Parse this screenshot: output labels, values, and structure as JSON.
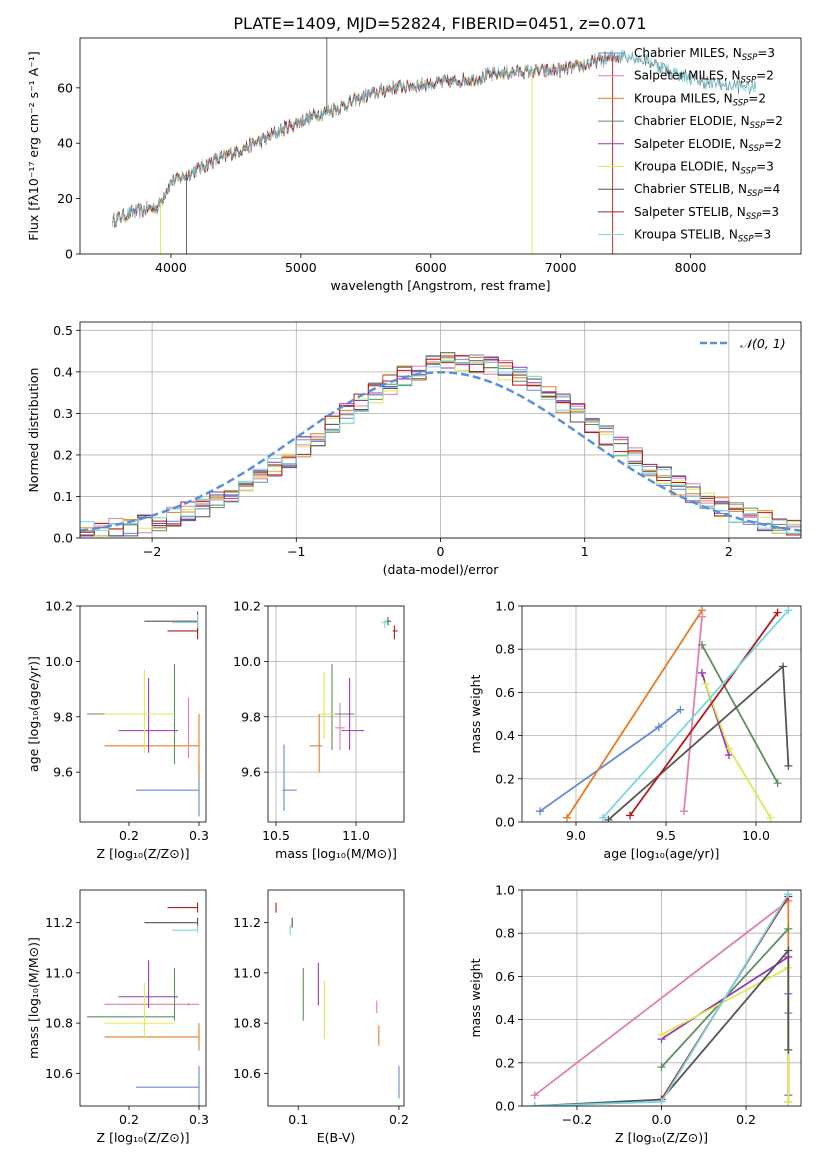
{
  "figure": {
    "title": "PLATE=1409, MJD=52824, FIBERID=0451, z=0.071"
  },
  "colors": {
    "Chabrier MILES": "#6688d8",
    "Salpeter MILES": "#e27fb0",
    "Kroupa MILES": "#e87c25",
    "Chabrier ELODIE": "#5e8f5e",
    "Salpeter ELODIE": "#9a36b8",
    "Kroupa ELODIE": "#dde853",
    "Chabrier STELIB": "#555555",
    "Salpeter STELIB": "#b31b1b",
    "Kroupa STELIB": "#79d6e3"
  },
  "chart_data": [
    {
      "id": "spectrum",
      "type": "line",
      "xlabel": "wavelength [Angstrom, rest frame]",
      "ylabel": "Flux [fλ10⁻¹⁷ erg cm⁻² s⁻¹ A⁻¹]",
      "xlim": [
        3300,
        8850
      ],
      "ylim": [
        0,
        78
      ],
      "xticks": [
        4000,
        5000,
        6000,
        7000,
        8000
      ],
      "yticks": [
        0,
        20,
        40,
        60
      ],
      "legend_position": "right",
      "legend": [
        {
          "label": "Chabrier MILES, N",
          "sub": "SSP",
          "tail": "=3"
        },
        {
          "label": "Salpeter MILES, N",
          "sub": "SSP",
          "tail": "=2"
        },
        {
          "label": "Kroupa MILES, N",
          "sub": "SSP",
          "tail": "=2"
        },
        {
          "label": "Chabrier ELODIE, N",
          "sub": "SSP",
          "tail": "=2"
        },
        {
          "label": "Salpeter ELODIE, N",
          "sub": "SSP",
          "tail": "=2"
        },
        {
          "label": "Kroupa ELODIE, N",
          "sub": "SSP",
          "tail": "=3"
        },
        {
          "label": "Chabrier STELIB, N",
          "sub": "SSP",
          "tail": "=4"
        },
        {
          "label": "Salpeter STELIB, N",
          "sub": "SSP",
          "tail": "=3"
        },
        {
          "label": "Kroupa STELIB, N",
          "sub": "SSP",
          "tail": "=3"
        }
      ],
      "continuum": {
        "x": [
          3550,
          3700,
          3900,
          4000,
          4100,
          4300,
          4500,
          4700,
          4900,
          5100,
          5300,
          5500,
          5700,
          5900,
          6100,
          6300,
          6500,
          6700,
          6900,
          7100,
          7300,
          7500,
          7700,
          7900,
          8100,
          8300,
          8500
        ],
        "y": [
          12,
          15,
          17,
          26,
          28,
          33,
          37,
          41,
          46,
          50,
          53,
          57,
          60,
          61,
          62,
          63,
          65,
          66,
          66,
          67,
          70,
          72,
          69,
          65,
          62,
          61,
          60
        ]
      },
      "spikes": [
        {
          "x": 3920,
          "y": 0,
          "series": "Kroupa ELODIE"
        },
        {
          "x": 4120,
          "y": 0,
          "series": "Chabrier STELIB"
        },
        {
          "x": 5200,
          "y": 78,
          "series": "Chabrier STELIB"
        },
        {
          "x": 6780,
          "y": 0,
          "series": "Kroupa ELODIE"
        },
        {
          "x": 7400,
          "y": 0,
          "series": "Salpeter STELIB"
        }
      ]
    },
    {
      "id": "residuals",
      "type": "step",
      "xlabel": "(data-model)/error",
      "ylabel": "Normed distribution",
      "xlim": [
        -2.5,
        2.5
      ],
      "ylim": [
        0,
        0.52
      ],
      "xticks": [
        -2,
        -1,
        0,
        1,
        2
      ],
      "yticks": [
        0.0,
        0.1,
        0.2,
        0.3,
        0.4,
        0.5
      ],
      "grid": true,
      "reference": {
        "name": "𝒩(0, 1)",
        "mean": 0,
        "sigma": 1,
        "style": "dashed",
        "color": "#5b8fd9"
      },
      "legend_position": "top-right"
    },
    {
      "id": "age-Z",
      "type": "errorbar",
      "xlabel": "Z [log₁₀(Z/Z⊙)]",
      "ylabel": "age  [log₁₀(age/yr)]",
      "xlim": [
        0.13,
        0.31
      ],
      "ylim": [
        9.42,
        10.2
      ],
      "xticks": [
        0.2,
        0.3
      ],
      "yticks": [
        9.6,
        9.8,
        10.0,
        10.2
      ],
      "points": [
        {
          "series": "Chabrier MILES",
          "x": 0.3,
          "y": 9.535,
          "xlo": 0.21,
          "xhi": 0.3,
          "ylo": 9.44,
          "yhi": 9.63
        },
        {
          "series": "Salpeter MILES",
          "x": 0.285,
          "y": 9.76,
          "xlo": 0.285,
          "xhi": 0.285,
          "ylo": 9.65,
          "yhi": 9.87
        },
        {
          "series": "Kroupa MILES",
          "x": 0.3,
          "y": 9.695,
          "xlo": 0.165,
          "xhi": 0.3,
          "ylo": 9.58,
          "yhi": 9.81
        },
        {
          "series": "Chabrier ELODIE",
          "x": 0.265,
          "y": 9.81,
          "xlo": 0.14,
          "xhi": 0.265,
          "ylo": 9.63,
          "yhi": 9.99
        },
        {
          "series": "Salpeter ELODIE",
          "x": 0.228,
          "y": 9.75,
          "xlo": 0.185,
          "xhi": 0.27,
          "ylo": 9.67,
          "yhi": 9.94
        },
        {
          "series": "Kroupa ELODIE",
          "x": 0.222,
          "y": 9.81,
          "xlo": 0.165,
          "xhi": 0.265,
          "ylo": 9.67,
          "yhi": 9.97
        },
        {
          "series": "Chabrier STELIB",
          "x": 0.298,
          "y": 10.145,
          "xlo": 0.222,
          "xhi": 0.298,
          "ylo": 10.1,
          "yhi": 10.18
        },
        {
          "series": "Salpeter STELIB",
          "x": 0.298,
          "y": 10.11,
          "xlo": 0.255,
          "xhi": 0.298,
          "ylo": 10.08,
          "yhi": 10.14
        },
        {
          "series": "Kroupa STELIB",
          "x": 0.298,
          "y": 10.14,
          "xlo": 0.262,
          "xhi": 0.298,
          "ylo": 10.12,
          "yhi": 10.17
        }
      ]
    },
    {
      "id": "age-mass",
      "type": "errorbar",
      "xlabel": "mass [log₁₀(M/M⊙)]",
      "ylabel": "",
      "xlim": [
        10.45,
        11.3
      ],
      "ylim": [
        9.42,
        10.2
      ],
      "xticks": [
        10.5,
        11.0
      ],
      "yticks": [
        9.6,
        9.8,
        10.0,
        10.2
      ],
      "grid": true,
      "points": [
        {
          "series": "Chabrier MILES",
          "x": 10.55,
          "y": 9.535,
          "xlo": 10.54,
          "xhi": 10.63,
          "ylo": 9.46,
          "yhi": 9.7
        },
        {
          "series": "Salpeter MILES",
          "x": 10.9,
          "y": 9.76,
          "xlo": 10.87,
          "xhi": 10.93,
          "ylo": 9.68,
          "yhi": 9.85
        },
        {
          "series": "Kroupa MILES",
          "x": 10.77,
          "y": 9.695,
          "xlo": 10.71,
          "xhi": 10.79,
          "ylo": 9.6,
          "yhi": 9.81
        },
        {
          "series": "Chabrier ELODIE",
          "x": 10.85,
          "y": 9.81,
          "xlo": 10.78,
          "xhi": 10.99,
          "ylo": 9.68,
          "yhi": 9.99
        },
        {
          "series": "Salpeter ELODIE",
          "x": 10.96,
          "y": 9.75,
          "xlo": 10.91,
          "xhi": 11.05,
          "ylo": 9.68,
          "yhi": 9.94
        },
        {
          "series": "Kroupa ELODIE",
          "x": 10.8,
          "y": 9.81,
          "xlo": 10.78,
          "xhi": 10.87,
          "ylo": 9.72,
          "yhi": 9.96
        },
        {
          "series": "Chabrier STELIB",
          "x": 11.2,
          "y": 10.145,
          "xlo": 11.19,
          "xhi": 11.22,
          "ylo": 10.13,
          "yhi": 10.16
        },
        {
          "series": "Salpeter STELIB",
          "x": 11.24,
          "y": 10.11,
          "xlo": 11.23,
          "xhi": 11.26,
          "ylo": 10.08,
          "yhi": 10.13
        },
        {
          "series": "Kroupa STELIB",
          "x": 11.18,
          "y": 10.14,
          "xlo": 11.16,
          "xhi": 11.2,
          "ylo": 10.12,
          "yhi": 10.15
        }
      ]
    },
    {
      "id": "weight-age",
      "type": "line",
      "xlabel": "age  [log₁₀(age/yr)]",
      "ylabel": "mass weight",
      "xlim": [
        8.7,
        10.25
      ],
      "ylim": [
        0,
        1.0
      ],
      "xticks": [
        9.0,
        9.5,
        10.0
      ],
      "yticks": [
        0.0,
        0.2,
        0.4,
        0.6,
        0.8,
        1.0
      ],
      "grid": true,
      "series": [
        {
          "name": "Chabrier MILES",
          "x": [
            8.8,
            9.46,
            9.58
          ],
          "y": [
            0.05,
            0.44,
            0.52
          ]
        },
        {
          "name": "Salpeter MILES",
          "x": [
            9.6,
            9.7
          ],
          "y": [
            0.05,
            0.95
          ]
        },
        {
          "name": "Kroupa MILES",
          "x": [
            8.95,
            9.7
          ],
          "y": [
            0.02,
            0.98
          ]
        },
        {
          "name": "Chabrier ELODIE",
          "x": [
            9.7,
            10.12
          ],
          "y": [
            0.82,
            0.18
          ]
        },
        {
          "name": "Salpeter ELODIE",
          "x": [
            9.7,
            9.85
          ],
          "y": [
            0.69,
            0.31
          ]
        },
        {
          "name": "Kroupa ELODIE",
          "x": [
            9.72,
            9.85,
            10.08
          ],
          "y": [
            0.64,
            0.34,
            0.02
          ]
        },
        {
          "name": "Chabrier STELIB",
          "x": [
            9.18,
            10.15,
            10.18
          ],
          "y": [
            0.01,
            0.72,
            0.26
          ]
        },
        {
          "name": "Salpeter STELIB",
          "x": [
            9.3,
            10.12
          ],
          "y": [
            0.03,
            0.97
          ]
        },
        {
          "name": "Kroupa STELIB",
          "x": [
            9.15,
            10.18
          ],
          "y": [
            0.02,
            0.98
          ]
        }
      ]
    },
    {
      "id": "mass-Z",
      "type": "errorbar",
      "xlabel": "Z [log₁₀(Z/Z⊙)]",
      "ylabel": "mass [log₁₀(M/M⊙)]",
      "xlim": [
        0.13,
        0.31
      ],
      "ylim": [
        10.47,
        11.33
      ],
      "xticks": [
        0.2,
        0.3
      ],
      "yticks": [
        10.6,
        10.8,
        11.0,
        11.2
      ],
      "points": [
        {
          "series": "Chabrier MILES",
          "x": 0.3,
          "y": 10.545,
          "xlo": 0.21,
          "xhi": 0.3,
          "ylo": 10.47,
          "yhi": 10.63
        },
        {
          "series": "Salpeter MILES",
          "x": 0.285,
          "y": 10.875,
          "xlo": 0.165,
          "xhi": 0.3,
          "ylo": 10.87,
          "yhi": 10.88
        },
        {
          "series": "Kroupa MILES",
          "x": 0.3,
          "y": 10.745,
          "xlo": 0.165,
          "xhi": 0.3,
          "ylo": 10.69,
          "yhi": 10.8
        },
        {
          "series": "Chabrier ELODIE",
          "x": 0.265,
          "y": 10.825,
          "xlo": 0.14,
          "xhi": 0.265,
          "ylo": 10.81,
          "yhi": 11.02
        },
        {
          "series": "Salpeter ELODIE",
          "x": 0.228,
          "y": 10.905,
          "xlo": 0.185,
          "xhi": 0.27,
          "ylo": 10.86,
          "yhi": 11.05
        },
        {
          "series": "Kroupa ELODIE",
          "x": 0.222,
          "y": 10.8,
          "xlo": 0.165,
          "xhi": 0.265,
          "ylo": 10.74,
          "yhi": 10.96
        },
        {
          "series": "Chabrier STELIB",
          "x": 0.298,
          "y": 11.2,
          "xlo": 0.222,
          "xhi": 0.298,
          "ylo": 11.18,
          "yhi": 11.22
        },
        {
          "series": "Salpeter STELIB",
          "x": 0.298,
          "y": 11.26,
          "xlo": 0.255,
          "xhi": 0.298,
          "ylo": 11.24,
          "yhi": 11.28
        },
        {
          "series": "Kroupa STELIB",
          "x": 0.298,
          "y": 11.17,
          "xlo": 0.262,
          "xhi": 0.298,
          "ylo": 11.16,
          "yhi": 11.19
        }
      ]
    },
    {
      "id": "mass-ebv",
      "type": "errorbar",
      "xlabel": "E(B-V)",
      "ylabel": "",
      "xlim": [
        0.07,
        0.205
      ],
      "ylim": [
        10.47,
        11.33
      ],
      "xticks": [
        0.1,
        0.2
      ],
      "yticks": [
        10.6,
        10.8,
        11.0,
        11.2
      ],
      "points": [
        {
          "series": "Chabrier MILES",
          "x": 0.2,
          "y": 10.545,
          "ylo": 10.5,
          "yhi": 10.63
        },
        {
          "series": "Salpeter MILES",
          "x": 0.178,
          "y": 10.875,
          "ylo": 10.84,
          "yhi": 10.89
        },
        {
          "series": "Kroupa MILES",
          "x": 0.18,
          "y": 10.745,
          "ylo": 10.71,
          "yhi": 10.79
        },
        {
          "series": "Chabrier ELODIE",
          "x": 0.105,
          "y": 10.825,
          "ylo": 10.81,
          "yhi": 11.02
        },
        {
          "series": "Salpeter ELODIE",
          "x": 0.12,
          "y": 10.905,
          "ylo": 10.87,
          "yhi": 11.04
        },
        {
          "series": "Kroupa ELODIE",
          "x": 0.126,
          "y": 10.8,
          "ylo": 10.74,
          "yhi": 10.97
        },
        {
          "series": "Chabrier STELIB",
          "x": 0.094,
          "y": 11.2,
          "ylo": 11.18,
          "yhi": 11.22
        },
        {
          "series": "Salpeter STELIB",
          "x": 0.078,
          "y": 11.26,
          "ylo": 11.24,
          "yhi": 11.28
        },
        {
          "series": "Kroupa STELIB",
          "x": 0.092,
          "y": 11.17,
          "ylo": 11.15,
          "yhi": 11.19
        }
      ]
    },
    {
      "id": "weight-Z",
      "type": "line",
      "xlabel": "Z [log₁₀(Z/Z⊙)]",
      "ylabel": "mass weight",
      "xlim": [
        -0.33,
        0.33
      ],
      "ylim": [
        0,
        1.0
      ],
      "xticks": [
        -0.2,
        0.0,
        0.2
      ],
      "yticks": [
        0.0,
        0.2,
        0.4,
        0.6,
        0.8,
        1.0
      ],
      "grid": true,
      "series": [
        {
          "name": "Chabrier MILES",
          "x": [
            0.3,
            0.3,
            0.3
          ],
          "y": [
            0.52,
            0.43,
            0.05
          ]
        },
        {
          "name": "Salpeter MILES",
          "x": [
            -0.3,
            0.3
          ],
          "y": [
            0.05,
            0.95
          ]
        },
        {
          "name": "Kroupa MILES",
          "x": [
            0.3,
            0.3
          ],
          "y": [
            0.02,
            0.98
          ]
        },
        {
          "name": "Chabrier ELODIE",
          "x": [
            0.0,
            0.3
          ],
          "y": [
            0.18,
            0.82
          ]
        },
        {
          "name": "Salpeter ELODIE",
          "x": [
            0.0,
            0.3
          ],
          "y": [
            0.31,
            0.69
          ]
        },
        {
          "name": "Kroupa ELODIE",
          "x": [
            0.0,
            0.3,
            0.3
          ],
          "y": [
            0.33,
            0.64,
            0.02
          ]
        },
        {
          "name": "Chabrier STELIB",
          "x": [
            -0.3,
            0.0,
            0.3,
            0.3
          ],
          "y": [
            0.0,
            0.03,
            0.72,
            0.26
          ]
        },
        {
          "name": "Salpeter STELIB",
          "x": [
            0.0,
            0.3
          ],
          "y": [
            0.03,
            0.97
          ]
        },
        {
          "name": "Kroupa STELIB",
          "x": [
            -0.3,
            0.0,
            0.3
          ],
          "y": [
            0.0,
            0.02,
            0.98
          ]
        }
      ]
    }
  ]
}
